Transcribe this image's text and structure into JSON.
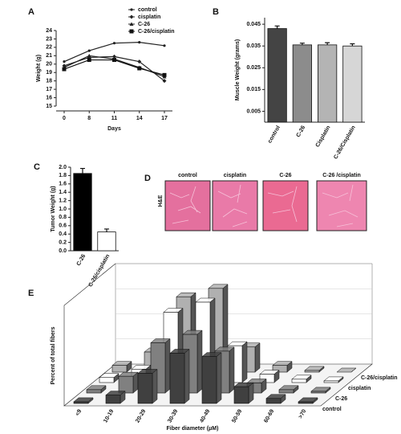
{
  "chart_data": [
    {
      "type": "line",
      "panel": "A",
      "x_label": "Days",
      "y_label": "Weight (g)",
      "categories": [
        "0",
        "8",
        "11",
        "14",
        "17"
      ],
      "ylim": [
        15,
        24
      ],
      "yticks": [
        15,
        16,
        17,
        18,
        19,
        20,
        21,
        22,
        23,
        24
      ],
      "legend": "top-right",
      "series": [
        {
          "name": "control",
          "color": "#222222",
          "marker": "circle",
          "values": [
            20.3,
            21.6,
            22.5,
            22.6,
            22.2
          ]
        },
        {
          "name": "cisplatin",
          "color": "#222222",
          "marker": "diamond",
          "values": [
            19.8,
            20.8,
            20.9,
            20.3,
            18.0
          ]
        },
        {
          "name": "C-26",
          "color": "#222222",
          "marker": "triangle",
          "values": [
            19.6,
            21.0,
            20.6,
            19.6,
            18.5
          ]
        },
        {
          "name": "C-26/cisplatin",
          "color": "#111111",
          "marker": "square",
          "values": [
            19.4,
            20.5,
            20.5,
            19.5,
            18.7
          ]
        }
      ]
    },
    {
      "type": "bar",
      "panel": "B",
      "y_label": "Muscle Weight (grams)",
      "categories": [
        "control",
        "C-26",
        "Cisplatin",
        "C-26/Cisplatin"
      ],
      "values": [
        0.043,
        0.0355,
        0.0355,
        0.035
      ],
      "errors": [
        0.0012,
        0.0008,
        0.001,
        0.001
      ],
      "colors": [
        "#444444",
        "#8c8c8c",
        "#b4b4b4",
        "#d6d6d6"
      ],
      "ylim": [
        0,
        0.048
      ],
      "yticks": [
        0.005,
        0.015,
        0.025,
        0.035,
        0.045
      ]
    },
    {
      "type": "bar",
      "panel": "C",
      "y_label": "Tumor Weight (g)",
      "categories": [
        "C-26",
        "C-26/cisplatin"
      ],
      "values": [
        1.85,
        0.45
      ],
      "errors": [
        0.12,
        0.07
      ],
      "colors": [
        "#000000",
        "#ffffff"
      ],
      "ylim": [
        0,
        2
      ],
      "yticks": [
        {
          "value": 0,
          "label": "0.0"
        },
        0.2,
        0.4,
        0.6,
        0.8,
        {
          "value": 1,
          "label": "1.0"
        },
        1.2,
        1.4,
        1.6,
        1.8,
        {
          "value": 2,
          "label": "2.0"
        }
      ]
    },
    {
      "type": "bar3d",
      "panel": "E",
      "x_label": "Fiber diameter (μM)",
      "y_label": "Percent of total fibers",
      "categories": [
        "<9",
        "10-19",
        "20-29",
        "30-39",
        "40-49",
        "50-59",
        "60-69",
        ">70"
      ],
      "ylim": [
        0,
        60
      ],
      "series": [
        {
          "name": "control",
          "color": "#404040",
          "values": [
            1,
            5,
            18,
            30,
            28,
            10,
            3,
            1
          ]
        },
        {
          "name": "C-26",
          "color": "#808080",
          "values": [
            2,
            10,
            30,
            35,
            25,
            6,
            2,
            1
          ]
        },
        {
          "name": "cisplatin",
          "color": "#ffffff",
          "values": [
            3,
            8,
            42,
            48,
            22,
            5,
            2,
            1
          ]
        },
        {
          "name": "C-26/cisplatin",
          "color": "#b0b0b0",
          "values": [
            4,
            12,
            45,
            50,
            15,
            4,
            1,
            0
          ]
        }
      ]
    }
  ],
  "panel_d": {
    "panel": "D",
    "row_label": "H&E",
    "columns": [
      "control",
      "cisplatin",
      "C-26",
      "C-26 /cisplatin"
    ]
  }
}
